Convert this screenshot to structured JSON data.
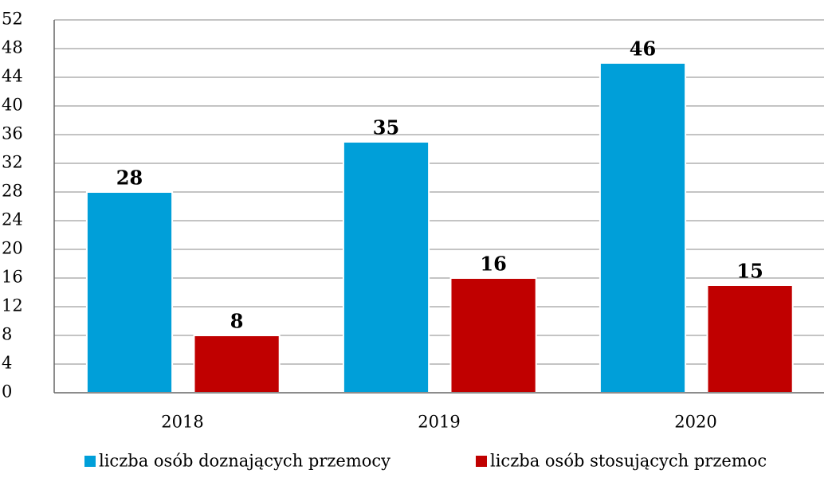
{
  "chart_data": {
    "type": "bar",
    "categories": [
      "2018",
      "2019",
      "2020"
    ],
    "series": [
      {
        "name": "liczba osób doznających przemocy",
        "color": "#009fd9",
        "values": [
          28,
          35,
          46
        ]
      },
      {
        "name": "liczba osób stosujących przemoc",
        "color": "#c00000",
        "values": [
          8,
          16,
          15
        ]
      }
    ],
    "ylim": [
      0,
      52
    ],
    "yticks": [
      0,
      4,
      8,
      12,
      16,
      20,
      24,
      28,
      32,
      36,
      40,
      44,
      48,
      52
    ],
    "grid": true,
    "legend": "bottom"
  }
}
